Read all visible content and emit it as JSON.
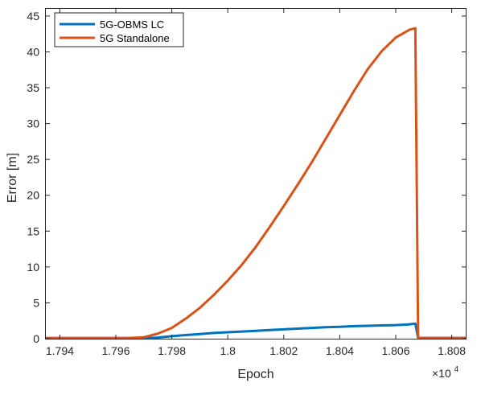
{
  "chart_data": {
    "type": "line",
    "title": "",
    "xlabel": "Epoch",
    "ylabel": "Error [m]",
    "x_multiplier_label": "×10",
    "x_multiplier_exponent": "4",
    "xlim": [
      17935,
      18085
    ],
    "ylim": [
      0,
      46
    ],
    "x_ticks": [
      17940,
      17960,
      17980,
      18000,
      18020,
      18040,
      18060,
      18080
    ],
    "x_tick_labels": [
      "1.794",
      "1.796",
      "1.798",
      "1.8",
      "1.802",
      "1.804",
      "1.806",
      "1.808"
    ],
    "y_ticks": [
      0,
      5,
      10,
      15,
      20,
      25,
      30,
      35,
      40,
      45
    ],
    "y_tick_labels": [
      "0",
      "5",
      "10",
      "15",
      "20",
      "25",
      "30",
      "35",
      "40",
      "45"
    ],
    "grid": false,
    "legend_position": "top-left",
    "series": [
      {
        "name": "5G-OBMS LC",
        "color": "#0072BD",
        "x": [
          17935,
          17940,
          17945,
          17950,
          17955,
          17960,
          17965,
          17970,
          17975,
          17980,
          17985,
          17990,
          17995,
          18000,
          18005,
          18010,
          18015,
          18020,
          18025,
          18030,
          18035,
          18040,
          18045,
          18050,
          18055,
          18060,
          18065,
          18067,
          18068,
          18070,
          18075,
          18080,
          18085
        ],
        "y": [
          0.05,
          0.05,
          0.05,
          0.05,
          0.05,
          0.05,
          0.05,
          0.05,
          0.15,
          0.35,
          0.5,
          0.65,
          0.8,
          0.9,
          1.0,
          1.1,
          1.2,
          1.3,
          1.4,
          1.5,
          1.6,
          1.65,
          1.75,
          1.8,
          1.85,
          1.9,
          2.0,
          2.1,
          0.1,
          0.1,
          0.1,
          0.1,
          0.1
        ]
      },
      {
        "name": "5G Standalone",
        "color": "#D95319",
        "x": [
          17935,
          17940,
          17945,
          17950,
          17955,
          17960,
          17965,
          17970,
          17975,
          17980,
          17985,
          17990,
          17995,
          18000,
          18005,
          18010,
          18015,
          18020,
          18025,
          18030,
          18035,
          18040,
          18045,
          18050,
          18055,
          18060,
          18065,
          18067,
          18068,
          18070,
          18075,
          18080,
          18085
        ],
        "y": [
          0.1,
          0.1,
          0.1,
          0.1,
          0.1,
          0.1,
          0.1,
          0.2,
          0.7,
          1.5,
          2.8,
          4.3,
          6.1,
          8.1,
          10.3,
          12.8,
          15.6,
          18.5,
          21.5,
          24.6,
          27.9,
          31.2,
          34.5,
          37.6,
          40.1,
          42.0,
          43.1,
          43.3,
          0.1,
          0.1,
          0.1,
          0.1,
          0.1
        ]
      }
    ]
  }
}
